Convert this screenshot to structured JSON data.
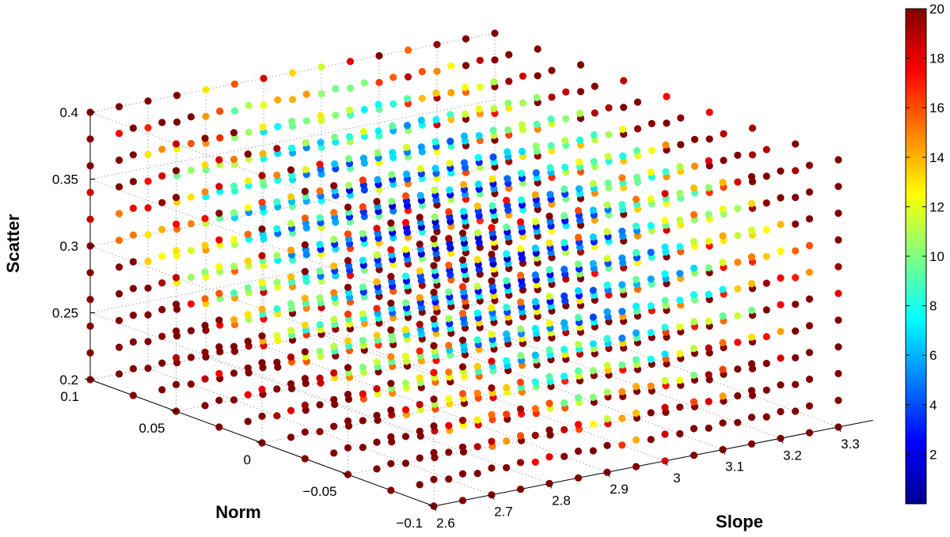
{
  "chart_data": {
    "type": "scatter",
    "projection": "3d",
    "title": "",
    "xlabel": "Slope",
    "ylabel": "Norm",
    "zlabel": "Scatter",
    "xlim": [
      2.6,
      3.3
    ],
    "ylim": [
      -0.1,
      0.1
    ],
    "zlim": [
      0.2,
      0.4
    ],
    "x_ticks": [
      "2.6",
      "2.7",
      "2.8",
      "2.9",
      "3",
      "3.1",
      "3.2",
      "3.3"
    ],
    "y_ticks": [
      "−0.1",
      "−0.05",
      "0",
      "0.05",
      "0.1"
    ],
    "z_ticks": [
      "0.2",
      "0.25",
      "0.3",
      "0.35",
      "0.4"
    ],
    "grid": true,
    "grid_points": {
      "slope": [
        2.6,
        2.65,
        2.7,
        2.75,
        2.8,
        2.85,
        2.9,
        2.95,
        3.0,
        3.05,
        3.1,
        3.15,
        3.2,
        3.25,
        3.3
      ],
      "norm": [
        -0.1,
        -0.075,
        -0.05,
        -0.025,
        0,
        0.025,
        0.05,
        0.075,
        0.1
      ],
      "scatter": [
        0.2,
        0.22,
        0.24,
        0.26,
        0.28,
        0.3,
        0.32,
        0.34,
        0.36,
        0.38,
        0.4
      ]
    },
    "color_value_model": "approximately minimum near slope 2.95, norm 0, scatter 0.32; grows toward the grid edges, largest (about 20) at high slope and low scatter",
    "colorbar": {
      "colormap": "jet",
      "range": [
        0,
        20
      ],
      "ticks": [
        "2",
        "4",
        "6",
        "8",
        "10",
        "12",
        "14",
        "16",
        "18",
        "20"
      ],
      "stops": [
        "#00008f",
        "#0000ff",
        "#0080ff",
        "#00ffff",
        "#80ff80",
        "#ffff00",
        "#ff8000",
        "#ff0000",
        "#800000"
      ]
    }
  }
}
